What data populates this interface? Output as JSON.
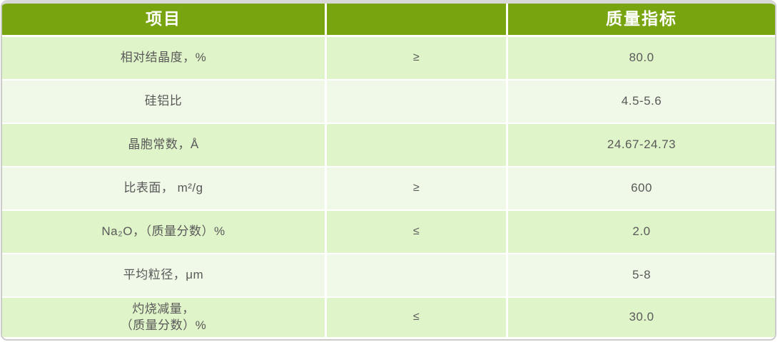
{
  "table": {
    "header": {
      "item": "项目",
      "relation": "",
      "index": "质量指标"
    },
    "rows": [
      {
        "item": "相对结晶度，%",
        "relation": "≥",
        "value": "80.0"
      },
      {
        "item": "硅铝比",
        "relation": "",
        "value": "4.5-5.6"
      },
      {
        "item": "晶胞常数，Å",
        "relation": "",
        "value": "24.67-24.73"
      },
      {
        "item": "比表面， m²/g",
        "relation": "≥",
        "value": "600"
      },
      {
        "item": "Na₂O，（质量分数）%",
        "relation": "≤",
        "value": "2.0"
      },
      {
        "item": "平均粒径，μm",
        "relation": "",
        "value": "5-8"
      },
      {
        "item": "灼烧减量，\n（质量分数）%",
        "relation": "≤",
        "value": "30.0"
      }
    ]
  },
  "colors": {
    "header_bg": "#78a50f",
    "row_dark": "#e0f4c9",
    "row_light": "#f0f9e7",
    "text": "#595959",
    "header_text": "#ffffff",
    "frame_border": "#cbcbcb",
    "top_strip": "#d8d8d8",
    "divider": "#ffffff"
  },
  "chart_data": {
    "type": "table",
    "columns": [
      "项目",
      "",
      "质量指标"
    ],
    "rows": [
      [
        "相对结晶度，%",
        "≥",
        "80.0"
      ],
      [
        "硅铝比",
        "",
        "4.5-5.6"
      ],
      [
        "晶胞常数，Å",
        "",
        "24.67-24.73"
      ],
      [
        "比表面， m²/g",
        "≥",
        "600"
      ],
      [
        "Na₂O，（质量分数）%",
        "≤",
        "2.0"
      ],
      [
        "平均粒径，μm",
        "",
        "5-8"
      ],
      [
        "灼烧减量，（质量分数）%",
        "≤",
        "30.0"
      ]
    ]
  }
}
